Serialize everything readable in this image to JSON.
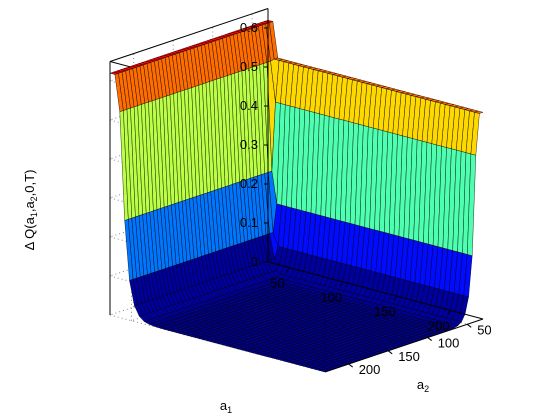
{
  "chart_data": {
    "type": "surface",
    "colormap": "jet",
    "grid": true,
    "xlabel": "a",
    "xlabel_sub": "1",
    "ylabel": "a",
    "ylabel_sub": "2",
    "zlabel": {
      "prefix": "Δ Q(a",
      "sub1": "1",
      "mid": ",a",
      "sub2": "2",
      "suffix": ",0,T)"
    },
    "x_ticks": [
      "50",
      "100",
      "150",
      "200"
    ],
    "y_ticks": [
      "50",
      "100",
      "150",
      "200"
    ],
    "z_ticks": [
      "0",
      "0.1",
      "0.2",
      "0.3",
      "0.4",
      "0.5",
      "0.6"
    ],
    "xlim": [
      30,
      230
    ],
    "ylim": [
      30,
      230
    ],
    "zlim": [
      0,
      0.65
    ],
    "ridge_a1": {
      "description_value_at_a1_min_edge": 0.62,
      "plateau_value": 0.35,
      "peak_value": 0.66
    },
    "ridge_a2": {
      "plateau_value": 0.53,
      "peak_value": 0.57
    },
    "floor_value": 0.0
  }
}
